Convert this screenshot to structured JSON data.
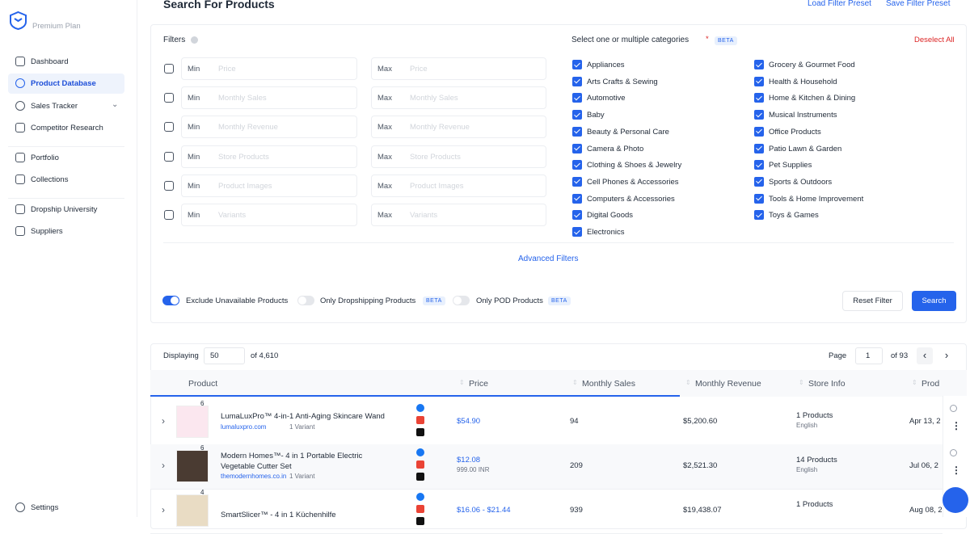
{
  "sidebar": {
    "plan": "Premium Plan",
    "nav": [
      "Dashboard",
      "Product Database",
      "Sales Tracker",
      "Competitor Research",
      "Portfolio",
      "Collections",
      "Dropship University",
      "Suppliers"
    ],
    "settings": "Settings"
  },
  "header": {
    "title": "Search For Products",
    "load_preset": "Load Filter Preset",
    "save_preset": "Save Filter Preset"
  },
  "filters": {
    "label": "Filters",
    "min_label": "Min",
    "max_label": "Max",
    "fields": [
      "Price",
      "Monthly Sales",
      "Monthly Revenue",
      "Store Products",
      "Product Images",
      "Variants"
    ]
  },
  "categories": {
    "title": "Select one or multiple categories",
    "required": "*",
    "beta": "BETA",
    "deselect": "Deselect All",
    "left": [
      "Appliances",
      "Arts Crafts & Sewing",
      "Automotive",
      "Baby",
      "Beauty & Personal Care",
      "Camera & Photo",
      "Clothing & Shoes & Jewelry",
      "Cell Phones & Accessories",
      "Computers & Accessories",
      "Digital Goods",
      "Electronics"
    ],
    "right": [
      "Grocery & Gourmet Food",
      "Health & Household",
      "Home & Kitchen & Dining",
      "Musical Instruments",
      "Office Products",
      "Patio Lawn & Garden",
      "Pet Supplies",
      "Sports & Outdoors",
      "Tools & Home Improvement",
      "Toys & Games"
    ]
  },
  "advanced": "Advanced Filters",
  "toggles": [
    {
      "label": "Exclude Unavailable Products",
      "on": true
    },
    {
      "label": "Only Dropshipping Products",
      "on": false,
      "badge": "BETA"
    },
    {
      "label": "Only POD Products",
      "on": false,
      "badge": "BETA"
    }
  ],
  "buttons": {
    "reset": "Reset Filter",
    "search": "Search"
  },
  "toolbar": {
    "displaying": "Displaying",
    "page_size": "50",
    "total": "of 4,610",
    "page_label": "Page",
    "page": "1",
    "pages": "of 93"
  },
  "table": {
    "columns": [
      "Product",
      "Price",
      "Monthly Sales",
      "Monthly Revenue",
      "Store Info",
      "Prod"
    ],
    "rows": [
      {
        "images": "6",
        "name": "LumaLuxPro™ 4-in-1 Anti-Aging Skincare Wand",
        "store": "lumaluxpro.com",
        "variants": "1 Variant",
        "price": "$54.90",
        "sales": "94",
        "revenue": "$5,200.60",
        "products": "1 Products",
        "language": "English",
        "created": "Apr 13, 2"
      },
      {
        "images": "6",
        "name": "Modern Homes™- 4 in 1 Portable Electric Vegetable Cutter Set",
        "store": "themodernhomes.co.in",
        "variants": "1 Variant",
        "price": "$12.08",
        "price_local": "999.00 INR",
        "sales": "209",
        "revenue": "$2,521.30",
        "products": "14 Products",
        "language": "English",
        "created": "Jul 06, 2"
      },
      {
        "images": "4",
        "name": "SmartSlicer™ - 4 in 1 Küchenhilfe",
        "price": "$16.06 - $21.44",
        "sales": "939",
        "revenue": "$19,438.07",
        "products": "1 Products",
        "created": "Aug 08, 2"
      }
    ]
  }
}
